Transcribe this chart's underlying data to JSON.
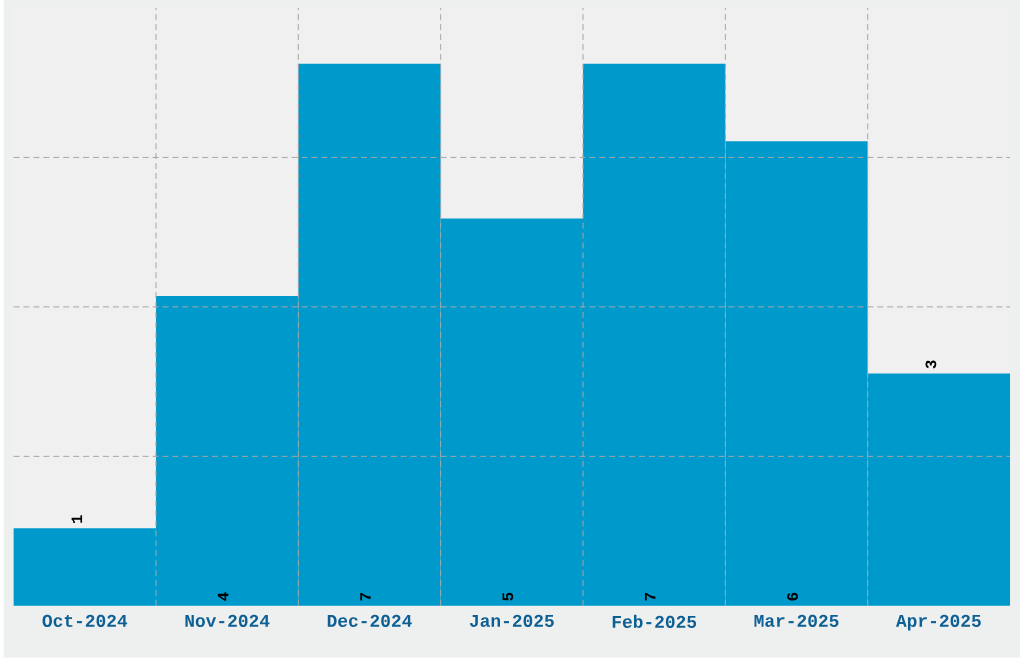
{
  "chart_data": {
    "type": "bar",
    "categories": [
      "Oct-2024",
      "Nov-2024",
      "Dec-2024",
      "Jan-2025",
      "Feb-2025",
      "Mar-2025",
      "Apr-2025"
    ],
    "values": [
      1,
      4,
      7,
      5,
      7,
      6,
      3
    ],
    "color": "#0099cc",
    "ylim": [
      0,
      7.72
    ],
    "yticks": [
      {
        "value": 1.93,
        "label": null
      },
      {
        "value": 3.86,
        "label": null
      },
      {
        "value": 5.79,
        "label": null
      }
    ],
    "grid": true,
    "data_labels": true
  }
}
